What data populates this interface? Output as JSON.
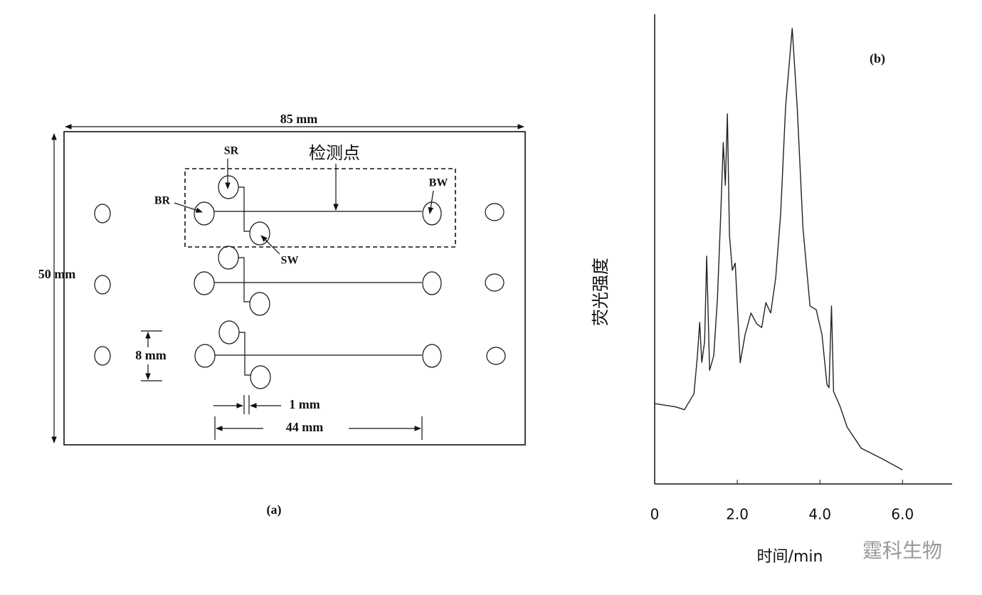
{
  "diagram": {
    "panel_a": {
      "width_label": "85 mm",
      "height_label": "50 mm",
      "detection_label": "检测点",
      "sr": "SR",
      "br": "BR",
      "bw": "BW",
      "sw": "SW",
      "spacing_label": "8 mm",
      "gap_label": "1 mm",
      "length_label": "44 mm",
      "caption": "(a)"
    },
    "panel_b_caption": "(b)",
    "watermark": "霆科生物"
  },
  "chart_data": {
    "type": "line",
    "x_label": "时间/min",
    "y_label": "荧光强度",
    "xlim": [
      0,
      7.2
    ],
    "ylim": [
      0,
      100
    ],
    "xticks": [
      0,
      {
        "value": 2,
        "label": "2.0"
      },
      {
        "value": 4,
        "label": "4.0"
      },
      {
        "value": 6,
        "label": "6.0"
      }
    ],
    "color": "#222222",
    "x": [
      0,
      0.52,
      0.72,
      0.95,
      1.03,
      1.09,
      1.14,
      1.21,
      1.26,
      1.33,
      1.43,
      1.52,
      1.6,
      1.66,
      1.71,
      1.76,
      1.81,
      1.88,
      1.95,
      2.07,
      2.19,
      2.33,
      2.47,
      2.59,
      2.69,
      2.81,
      2.93,
      3.05,
      3.17,
      3.33,
      3.45,
      3.59,
      3.76,
      3.91,
      4.05,
      4.17,
      4.22,
      4.28,
      4.33,
      4.48,
      4.66,
      5.0,
      5.52,
      6.0
    ],
    "values": [
      17.1,
      16.4,
      15.8,
      19.2,
      26.8,
      34.4,
      25.9,
      30.3,
      48.5,
      24.2,
      27.3,
      39.4,
      57.6,
      72.7,
      63.6,
      78.8,
      53.0,
      45.5,
      47.0,
      25.8,
      31.8,
      36.4,
      34.1,
      33.3,
      38.6,
      36.4,
      43.9,
      57.6,
      80.3,
      97.0,
      80.3,
      54.5,
      37.9,
      37.1,
      31.8,
      21.2,
      20.5,
      37.9,
      19.7,
      16.7,
      12.1,
      7.6,
      5.3,
      3.0
    ]
  }
}
